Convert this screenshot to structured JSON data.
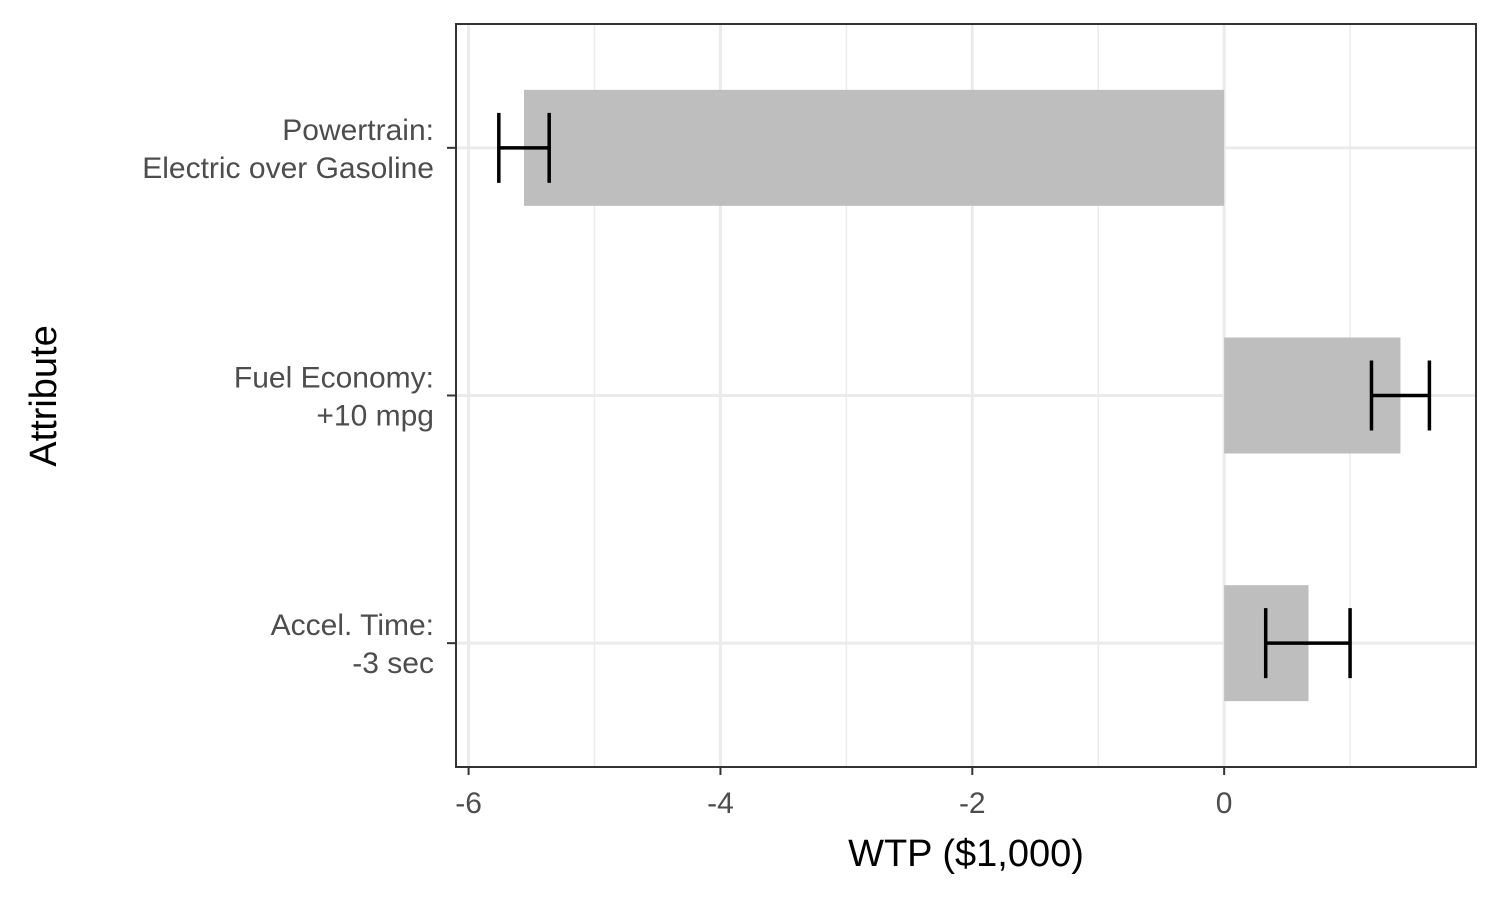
{
  "chart_data": {
    "type": "bar",
    "orientation": "horizontal",
    "xlabel": "WTP ($1,000)",
    "ylabel": "Attribute",
    "xlim": [
      -6.1,
      2.0
    ],
    "x_ticks": [
      -6,
      -4,
      -2,
      0
    ],
    "x_tick_labels": [
      "-6",
      "-4",
      "-2",
      "0"
    ],
    "x_minor_ticks": [
      -5,
      -3,
      -1,
      1
    ],
    "grid": true,
    "categories": [
      {
        "lines": [
          "Powertrain:",
          "Electric over Gasoline"
        ]
      },
      {
        "lines": [
          "Fuel Economy:",
          "+10 mpg"
        ]
      },
      {
        "lines": [
          "Accel. Time:",
          "-3 sec"
        ]
      }
    ],
    "values": [
      -5.56,
      1.4,
      0.67
    ],
    "error_low": [
      -5.76,
      1.17,
      0.33
    ],
    "error_high": [
      -5.36,
      1.63,
      1.0
    ],
    "colors": {
      "bar": "#bebebe",
      "error_bar": "#000000",
      "grid": "#ebebeb",
      "panel_border": "#333333",
      "tick_label": "#4d4d4d"
    }
  }
}
